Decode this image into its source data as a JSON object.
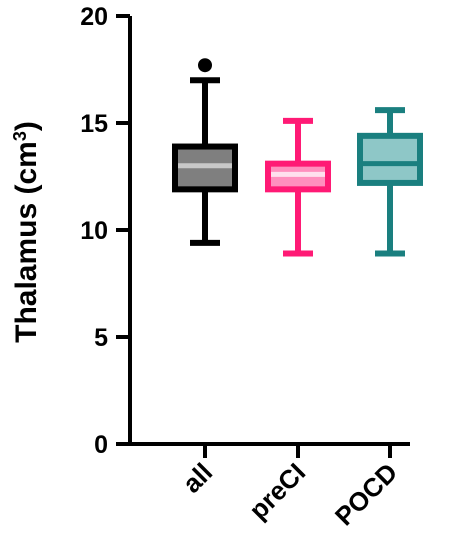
{
  "chart_data": {
    "type": "box",
    "ylabel": "Thalamus (cm³)",
    "ylabel_main": "Thalamus (cm",
    "ylabel_sup": "3",
    "ylabel_close": ")",
    "ylim": [
      0,
      20
    ],
    "yticks": [
      0,
      5,
      10,
      15,
      20
    ],
    "grid": false,
    "categories": [
      "all",
      "preCI",
      "POCD"
    ],
    "series": [
      {
        "category": "all",
        "min": 9.4,
        "q1": 11.9,
        "median": 13.0,
        "q3": 13.9,
        "max": 17.0,
        "outliers": [
          17.7
        ],
        "stroke": "#000000",
        "fill": "#7f7f7f",
        "median_color": "#c8c8c8"
      },
      {
        "category": "preCI",
        "min": 8.9,
        "q1": 11.9,
        "median": 12.6,
        "q3": 13.1,
        "max": 15.1,
        "outliers": [],
        "stroke": "#ff1a75",
        "fill": "#ff8fbe",
        "median_color": "#ffe0ee"
      },
      {
        "category": "POCD",
        "min": 8.9,
        "q1": 12.2,
        "median": 13.1,
        "q3": 14.4,
        "max": 15.6,
        "outliers": [],
        "stroke": "#1a7f7f",
        "fill": "#8ec7c7",
        "median_color": "#1a7f7f"
      }
    ]
  }
}
